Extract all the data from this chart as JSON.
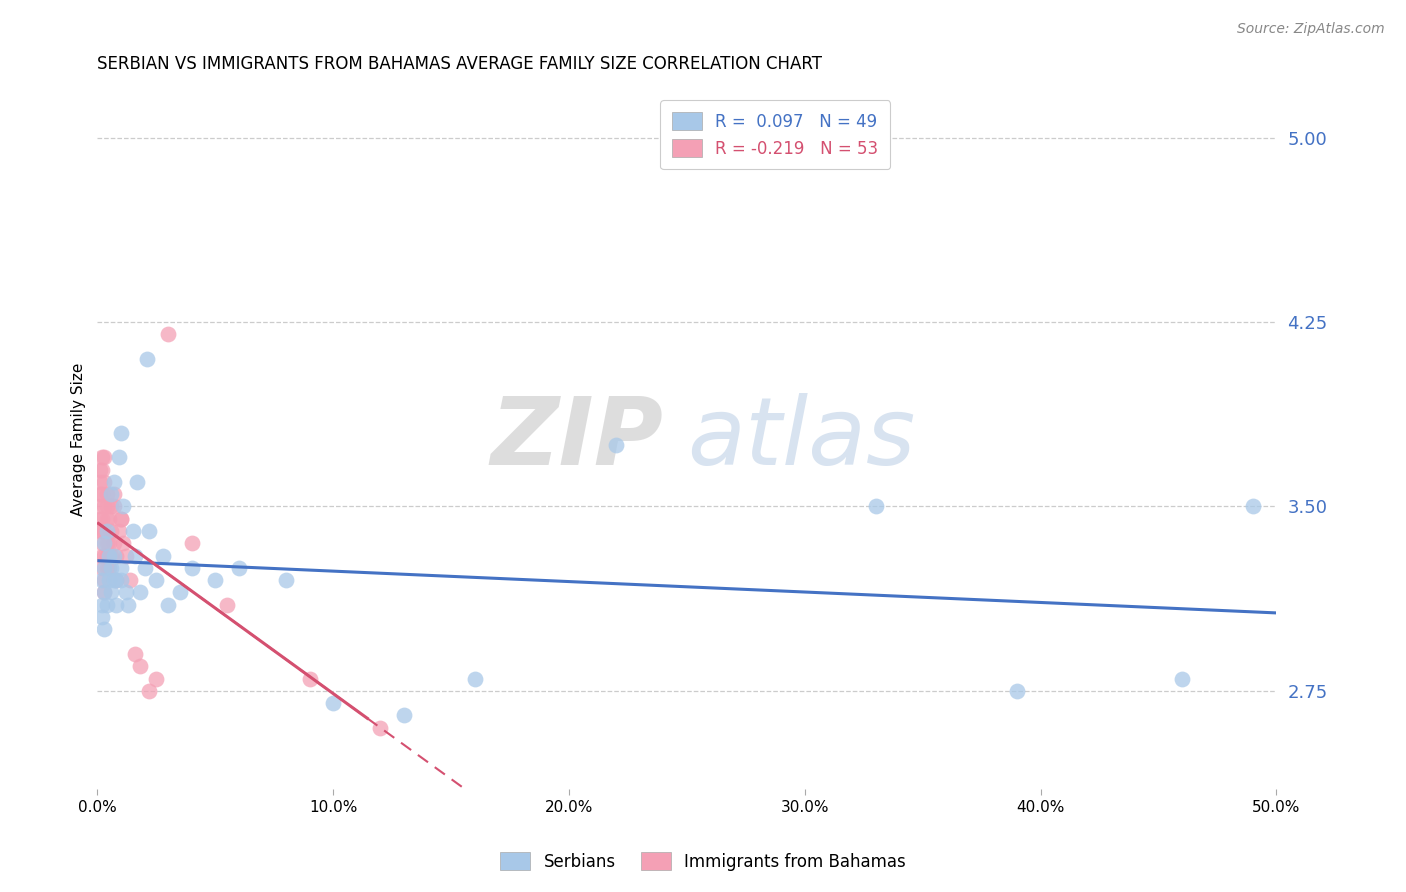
{
  "title": "SERBIAN VS IMMIGRANTS FROM BAHAMAS AVERAGE FAMILY SIZE CORRELATION CHART",
  "source": "Source: ZipAtlas.com",
  "ylabel": "Average Family Size",
  "yticks": [
    2.75,
    3.5,
    4.25,
    5.0
  ],
  "ylim": [
    2.35,
    5.2
  ],
  "xlim": [
    0.0,
    0.5
  ],
  "xticks": [
    0.0,
    0.1,
    0.2,
    0.3,
    0.4,
    0.5
  ],
  "xticklabels": [
    "0.0%",
    "10.0%",
    "20.0%",
    "30.0%",
    "40.0%",
    "50.0%"
  ],
  "legend1_label": "R =  0.097   N = 49",
  "legend2_label": "R = -0.219   N = 53",
  "series1_color": "#a8c8e8",
  "series2_color": "#f4a0b5",
  "trend1_color": "#4472c4",
  "trend2_color": "#d45070",
  "trend2_dash": [
    6,
    3
  ],
  "watermark_zip": "ZIP",
  "watermark_atlas": "atlas",
  "bottom_legend1": "Serbians",
  "bottom_legend2": "Immigrants from Bahamas",
  "series1_x": [
    0.002,
    0.002,
    0.002,
    0.003,
    0.003,
    0.003,
    0.003,
    0.004,
    0.004,
    0.005,
    0.005,
    0.006,
    0.006,
    0.006,
    0.007,
    0.007,
    0.007,
    0.008,
    0.008,
    0.009,
    0.01,
    0.01,
    0.011,
    0.012,
    0.013,
    0.015,
    0.016,
    0.017,
    0.018,
    0.02,
    0.021,
    0.022,
    0.025,
    0.028,
    0.03,
    0.035,
    0.04,
    0.05,
    0.06,
    0.08,
    0.1,
    0.13,
    0.16,
    0.22,
    0.33,
    0.39,
    0.46,
    0.49,
    0.01
  ],
  "series1_y": [
    3.2,
    3.1,
    3.05,
    3.25,
    3.15,
    3.0,
    3.35,
    3.4,
    3.1,
    3.3,
    3.2,
    3.55,
    3.25,
    3.15,
    3.6,
    3.3,
    3.2,
    3.1,
    3.2,
    3.7,
    3.8,
    3.2,
    3.5,
    3.15,
    3.1,
    3.4,
    3.3,
    3.6,
    3.15,
    3.25,
    4.1,
    3.4,
    3.2,
    3.3,
    3.1,
    3.15,
    3.25,
    3.2,
    3.25,
    3.2,
    2.7,
    2.65,
    2.8,
    3.75,
    3.5,
    2.75,
    2.8,
    3.5,
    3.25
  ],
  "series2_x": [
    0.001,
    0.001,
    0.001,
    0.001,
    0.001,
    0.001,
    0.002,
    0.002,
    0.002,
    0.002,
    0.002,
    0.002,
    0.002,
    0.003,
    0.003,
    0.003,
    0.003,
    0.003,
    0.003,
    0.004,
    0.004,
    0.004,
    0.004,
    0.004,
    0.005,
    0.005,
    0.005,
    0.006,
    0.006,
    0.006,
    0.007,
    0.007,
    0.007,
    0.008,
    0.008,
    0.009,
    0.01,
    0.011,
    0.012,
    0.014,
    0.016,
    0.018,
    0.022,
    0.025,
    0.03,
    0.04,
    0.055,
    0.09,
    0.12,
    0.002,
    0.003,
    0.004,
    0.01
  ],
  "series2_y": [
    3.6,
    3.55,
    3.5,
    3.45,
    3.4,
    3.65,
    3.7,
    3.55,
    3.45,
    3.4,
    3.35,
    3.3,
    3.25,
    3.6,
    3.5,
    3.4,
    3.3,
    3.2,
    3.15,
    3.55,
    3.45,
    3.35,
    3.25,
    3.3,
    3.45,
    3.35,
    3.25,
    3.5,
    3.4,
    3.3,
    3.5,
    3.35,
    3.55,
    3.3,
    3.2,
    3.4,
    3.45,
    3.35,
    3.3,
    3.2,
    2.9,
    2.85,
    2.75,
    2.8,
    4.2,
    3.35,
    3.1,
    2.8,
    2.6,
    3.65,
    3.7,
    3.5,
    3.45
  ],
  "grid_color": "#cccccc",
  "grid_linestyle": "--",
  "title_fontsize": 12,
  "axis_label_color": "#4472c4",
  "ylabel_color": "black",
  "ylabel_fontsize": 11
}
